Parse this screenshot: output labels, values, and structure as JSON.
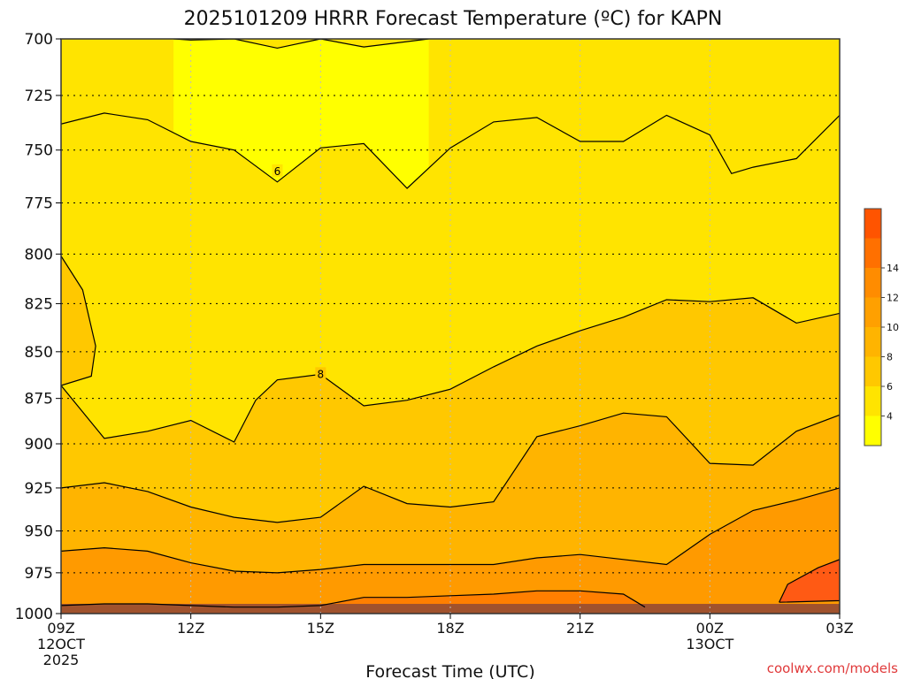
{
  "chart_data": {
    "type": "contour",
    "title": "2025101209 HRRR Forecast Temperature (ºC) for KAPN",
    "xlabel": "Forecast Time (UTC)",
    "ylabel": "",
    "credit": "coolwx.com/models",
    "x_ticks": [
      {
        "hour": 0,
        "lines": [
          "09Z",
          "12OCT",
          "2025"
        ]
      },
      {
        "hour": 3,
        "lines": [
          "12Z"
        ]
      },
      {
        "hour": 6,
        "lines": [
          "15Z"
        ]
      },
      {
        "hour": 9,
        "lines": [
          "18Z"
        ]
      },
      {
        "hour": 12,
        "lines": [
          "21Z"
        ]
      },
      {
        "hour": 15,
        "lines": [
          "00Z",
          "13OCT"
        ]
      },
      {
        "hour": 18,
        "lines": [
          "03Z"
        ]
      }
    ],
    "xlim": [
      0,
      18
    ],
    "y_ticks": [
      700,
      725,
      750,
      775,
      800,
      825,
      850,
      875,
      900,
      925,
      950,
      975,
      1000
    ],
    "y_label_scale": "log-pressure",
    "colorbar": {
      "labels": [
        4,
        6,
        8,
        10,
        12,
        14
      ],
      "colors": [
        "#ffff00",
        "#ffe400",
        "#ffc800",
        "#ffb400",
        "#ffa000",
        "#ff8c00",
        "#ff7000",
        "#ff5400"
      ]
    },
    "underground_color": "#a0522d",
    "contours": [
      {
        "level": 4,
        "fill": "#ffff00",
        "label": "",
        "label_at": null,
        "x": [
          2.6,
          3,
          4,
          5,
          6,
          7,
          8.5
        ],
        "y": [
          700,
          700.5,
          700,
          704,
          700,
          703.5,
          700
        ]
      },
      {
        "level": 6,
        "fill": "#ffe400",
        "label": "6",
        "label_at": [
          5,
          760
        ],
        "x": [
          0,
          1,
          2,
          3,
          4,
          5,
          6,
          7,
          8,
          9,
          10,
          11,
          12,
          13,
          14,
          15,
          15.5,
          16,
          17,
          18
        ],
        "y": [
          738,
          733,
          736,
          746,
          750,
          765,
          749,
          747,
          768,
          749,
          737,
          735,
          746,
          746,
          734,
          743,
          761,
          758,
          754,
          734
        ]
      },
      {
        "level": 8,
        "fill": "#ffc800",
        "label": "8",
        "label_at": [
          6,
          862
        ],
        "x": [
          0,
          0.5,
          0.8,
          0.7,
          0,
          1,
          2,
          3,
          4,
          4.5,
          5,
          6,
          7,
          8,
          9,
          10,
          11,
          12,
          13,
          14,
          15,
          16,
          17,
          18
        ],
        "y": [
          801,
          818,
          847,
          863,
          868,
          897,
          893,
          887,
          899,
          876,
          865,
          862,
          879,
          876,
          870,
          858,
          847,
          839,
          832,
          823,
          824,
          822,
          835,
          830
        ]
      },
      {
        "level": 10,
        "fill": "#ffb400",
        "label": "",
        "label_at": null,
        "x": [
          0,
          1,
          2,
          3,
          4,
          5,
          6,
          7,
          8,
          9,
          10,
          11,
          12,
          13,
          14,
          15,
          16,
          17,
          18
        ],
        "y": [
          925,
          922,
          927,
          936,
          942,
          945,
          942,
          924,
          934,
          936,
          933,
          896,
          890,
          883,
          885,
          911,
          912,
          893,
          884
        ]
      },
      {
        "level": 12,
        "fill": "#ff9a00",
        "label": "",
        "label_at": null,
        "x": [
          0,
          1,
          2,
          3,
          4,
          5,
          6,
          7,
          8,
          9,
          10,
          11,
          12,
          13,
          14,
          15,
          16,
          17,
          18
        ],
        "y": [
          962,
          960,
          962,
          969,
          974,
          975,
          973,
          970,
          970,
          970,
          970,
          966,
          964,
          967,
          970,
          952,
          938,
          932,
          925
        ]
      },
      {
        "level": 14,
        "fill": "#ff7f00",
        "label": "",
        "label_at": null,
        "x": [
          0,
          1,
          2,
          3,
          4,
          5,
          6,
          7,
          8,
          9,
          10,
          11,
          12,
          13,
          13.5
        ],
        "y": [
          995,
          994,
          994,
          995,
          996,
          996,
          995,
          990,
          990,
          989,
          988,
          986,
          986,
          988,
          996
        ]
      },
      {
        "level": 16,
        "fill": "#ff5a14",
        "label": "",
        "label_at": null,
        "x": [
          16.6,
          16.8,
          17.5,
          18,
          18,
          16.6
        ],
        "y": [
          993,
          982,
          972,
          967,
          992,
          993
        ]
      }
    ]
  }
}
